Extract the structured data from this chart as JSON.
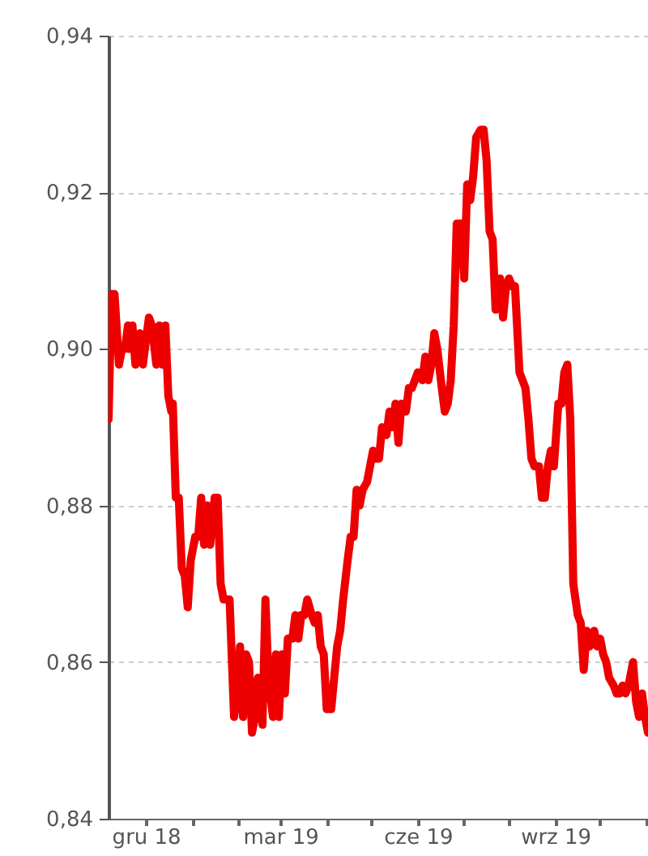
{
  "chart_data": {
    "type": "line",
    "grid": "y",
    "xlim": [
      "2018-11-06",
      "2019-11-02"
    ],
    "xticks": [
      {
        "value": "2018-12-01",
        "label": "gru 18"
      },
      {
        "value": "2019-01-01",
        "label": null
      },
      {
        "value": "2019-02-01",
        "label": null
      },
      {
        "value": "2019-03-01",
        "label": "mar 19"
      },
      {
        "value": "2019-04-01",
        "label": null
      },
      {
        "value": "2019-05-01",
        "label": null
      },
      {
        "value": "2019-06-01",
        "label": "cze 19"
      },
      {
        "value": "2019-07-01",
        "label": null
      },
      {
        "value": "2019-08-01",
        "label": null
      },
      {
        "value": "2019-09-01",
        "label": "wrz 19"
      },
      {
        "value": "2019-10-01",
        "label": null
      },
      {
        "value": "2019-11-01",
        "label": null
      }
    ],
    "ylim": [
      0.84,
      0.94
    ],
    "yticks": [
      {
        "value": 0.84,
        "label": "0,84"
      },
      {
        "value": 0.86,
        "label": "0,86"
      },
      {
        "value": 0.88,
        "label": "0,88"
      },
      {
        "value": 0.9,
        "label": "0,90"
      },
      {
        "value": 0.92,
        "label": "0,92"
      },
      {
        "value": 0.94,
        "label": "0,94"
      }
    ],
    "x": [
      "2018-11-06",
      "2018-11-08",
      "2018-11-10",
      "2018-11-13",
      "2018-11-15",
      "2018-11-17",
      "2018-11-19",
      "2018-11-20",
      "2018-11-22",
      "2018-11-24",
      "2018-11-27",
      "2018-11-29",
      "2018-12-01",
      "2018-12-03",
      "2018-12-05",
      "2018-12-08",
      "2018-12-10",
      "2018-12-12",
      "2018-12-14",
      "2018-12-16",
      "2018-12-18",
      "2018-12-19",
      "2018-12-21",
      "2018-12-23",
      "2018-12-25",
      "2018-12-27",
      "2018-12-29",
      "2018-12-31",
      "2019-01-03",
      "2019-01-05",
      "2019-01-07",
      "2019-01-09",
      "2019-01-11",
      "2019-01-13",
      "2019-01-16",
      "2019-01-18",
      "2019-01-20",
      "2019-01-22",
      "2019-01-24",
      "2019-01-26",
      "2019-01-29",
      "2019-01-31",
      "2019-02-02",
      "2019-02-04",
      "2019-02-06",
      "2019-02-08",
      "2019-02-10",
      "2019-02-12",
      "2019-02-14",
      "2019-02-17",
      "2019-02-19",
      "2019-02-21",
      "2019-02-24",
      "2019-02-26",
      "2019-02-28",
      "2019-03-02",
      "2019-03-04",
      "2019-03-06",
      "2019-03-09",
      "2019-03-11",
      "2019-03-13",
      "2019-03-15",
      "2019-03-17",
      "2019-03-19",
      "2019-03-22",
      "2019-03-24",
      "2019-03-26",
      "2019-03-28",
      "2019-03-30",
      "2019-04-01",
      "2019-04-04",
      "2019-04-06",
      "2019-04-08",
      "2019-04-10",
      "2019-04-12",
      "2019-04-15",
      "2019-04-17",
      "2019-04-19",
      "2019-04-21",
      "2019-04-23",
      "2019-04-25",
      "2019-04-28",
      "2019-04-30",
      "2019-05-02",
      "2019-05-04",
      "2019-05-06",
      "2019-05-08",
      "2019-05-11",
      "2019-05-13",
      "2019-05-15",
      "2019-05-17",
      "2019-05-19",
      "2019-05-21",
      "2019-05-24",
      "2019-05-26",
      "2019-05-28",
      "2019-05-30",
      "2019-06-01",
      "2019-06-04",
      "2019-06-06",
      "2019-06-08",
      "2019-06-10",
      "2019-06-12",
      "2019-06-14",
      "2019-06-17",
      "2019-06-19",
      "2019-06-21",
      "2019-06-23",
      "2019-06-25",
      "2019-06-27",
      "2019-06-30",
      "2019-07-02",
      "2019-07-04",
      "2019-07-06",
      "2019-07-08",
      "2019-07-10",
      "2019-07-13",
      "2019-07-15",
      "2019-07-17",
      "2019-07-19",
      "2019-07-21",
      "2019-07-23",
      "2019-07-26",
      "2019-07-28",
      "2019-07-30",
      "2019-08-01",
      "2019-08-03",
      "2019-08-05",
      "2019-08-08",
      "2019-08-10",
      "2019-08-12",
      "2019-08-14",
      "2019-08-16",
      "2019-08-18",
      "2019-08-21",
      "2019-08-23",
      "2019-08-25",
      "2019-08-27",
      "2019-08-29",
      "2019-08-31",
      "2019-09-03",
      "2019-09-05",
      "2019-09-07",
      "2019-09-09",
      "2019-09-11",
      "2019-09-13",
      "2019-09-16",
      "2019-09-18",
      "2019-09-20",
      "2019-09-22",
      "2019-09-24",
      "2019-09-27",
      "2019-09-29",
      "2019-10-01",
      "2019-10-03",
      "2019-10-05",
      "2019-10-07",
      "2019-10-10",
      "2019-10-12",
      "2019-10-14",
      "2019-10-16",
      "2019-10-18",
      "2019-10-20",
      "2019-10-23",
      "2019-10-25",
      "2019-10-27",
      "2019-10-29",
      "2019-10-31",
      "2019-11-02"
    ],
    "series": [
      {
        "color": "#ee0000",
        "values": [
          0.891,
          0.907,
          0.907,
          0.898,
          0.9,
          0.9,
          0.903,
          0.9,
          0.903,
          0.898,
          0.902,
          0.898,
          0.901,
          0.904,
          0.903,
          0.898,
          0.903,
          0.898,
          0.903,
          0.894,
          0.892,
          0.893,
          0.881,
          0.881,
          0.872,
          0.871,
          0.867,
          0.873,
          0.876,
          0.876,
          0.881,
          0.875,
          0.88,
          0.875,
          0.881,
          0.881,
          0.87,
          0.868,
          0.868,
          0.868,
          0.853,
          0.856,
          0.862,
          0.853,
          0.861,
          0.86,
          0.851,
          0.853,
          0.858,
          0.852,
          0.868,
          0.858,
          0.853,
          0.861,
          0.853,
          0.861,
          0.856,
          0.863,
          0.863,
          0.866,
          0.863,
          0.866,
          0.866,
          0.868,
          0.866,
          0.865,
          0.866,
          0.862,
          0.861,
          0.854,
          0.854,
          0.858,
          0.862,
          0.864,
          0.868,
          0.873,
          0.876,
          0.876,
          0.882,
          0.88,
          0.882,
          0.883,
          0.885,
          0.887,
          0.886,
          0.886,
          0.89,
          0.889,
          0.892,
          0.89,
          0.893,
          0.888,
          0.893,
          0.892,
          0.895,
          0.895,
          0.896,
          0.897,
          0.896,
          0.899,
          0.896,
          0.898,
          0.902,
          0.9,
          0.895,
          0.892,
          0.893,
          0.896,
          0.903,
          0.916,
          0.916,
          0.909,
          0.921,
          0.919,
          0.922,
          0.927,
          0.928,
          0.928,
          0.924,
          0.915,
          0.914,
          0.905,
          0.909,
          0.904,
          0.908,
          0.909,
          0.908,
          0.908,
          0.897,
          0.896,
          0.895,
          0.891,
          0.886,
          0.885,
          0.885,
          0.881,
          0.881,
          0.885,
          0.887,
          0.885,
          0.893,
          0.893,
          0.897,
          0.898,
          0.891,
          0.87,
          0.866,
          0.865,
          0.859,
          0.864,
          0.862,
          0.864,
          0.862,
          0.863,
          0.861,
          0.86,
          0.858,
          0.857,
          0.856,
          0.856,
          0.857,
          0.856,
          0.857,
          0.86,
          0.855,
          0.853,
          0.856,
          0.853,
          0.851
        ]
      }
    ]
  }
}
